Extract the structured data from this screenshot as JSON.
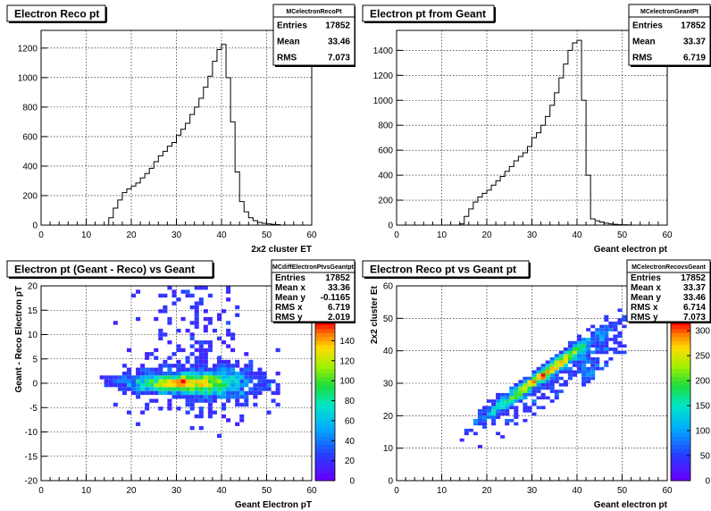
{
  "chart_data": [
    {
      "type": "bar",
      "title": "Electron Reco pt",
      "stats_name": "MCelectronRecoPt",
      "stats": [
        {
          "label": "Entries",
          "value": "17852"
        },
        {
          "label": "Mean",
          "value": "33.46"
        },
        {
          "label": "RMS",
          "value": "7.073"
        }
      ],
      "xlabel": "2x2 cluster ET",
      "ylabel": "",
      "xlim": [
        0,
        60
      ],
      "ylim": [
        0,
        1320
      ],
      "xticks": [
        0,
        10,
        20,
        30,
        40,
        50,
        60
      ],
      "yticks": [
        0,
        200,
        400,
        600,
        800,
        1000,
        1200
      ],
      "grid": true,
      "bin_width": 1,
      "x": [
        15,
        16,
        17,
        18,
        19,
        20,
        21,
        22,
        23,
        24,
        25,
        26,
        27,
        28,
        29,
        30,
        31,
        32,
        33,
        34,
        35,
        36,
        37,
        38,
        39,
        40,
        41,
        42,
        43,
        44,
        45,
        46,
        47,
        48,
        49,
        50,
        51,
        52
      ],
      "values": [
        50,
        115,
        170,
        220,
        245,
        265,
        285,
        320,
        350,
        385,
        430,
        470,
        500,
        535,
        560,
        610,
        650,
        690,
        750,
        800,
        860,
        935,
        1010,
        1110,
        1190,
        1225,
        1000,
        700,
        360,
        160,
        90,
        50,
        30,
        18,
        12,
        8,
        5,
        3
      ]
    },
    {
      "type": "bar",
      "title": "Electron pt from Geant",
      "stats_name": "MCelectronGeantPt",
      "stats": [
        {
          "label": "Entries",
          "value": "17852"
        },
        {
          "label": "Mean",
          "value": "33.37"
        },
        {
          "label": "RMS",
          "value": "6.719"
        }
      ],
      "xlabel": "Geant electron pt",
      "ylabel": "",
      "xlim": [
        0,
        60
      ],
      "ylim": [
        0,
        1560
      ],
      "xticks": [
        0,
        10,
        20,
        30,
        40,
        50,
        60
      ],
      "yticks": [
        0,
        200,
        400,
        600,
        800,
        1000,
        1200,
        1400
      ],
      "grid": true,
      "bin_width": 1,
      "x": [
        14,
        15,
        16,
        17,
        18,
        19,
        20,
        21,
        22,
        23,
        24,
        25,
        26,
        27,
        28,
        29,
        30,
        31,
        32,
        33,
        34,
        35,
        36,
        37,
        38,
        39,
        40,
        41,
        42,
        43,
        44,
        45,
        46,
        47,
        48,
        49,
        50,
        51
      ],
      "values": [
        10,
        70,
        130,
        185,
        225,
        255,
        280,
        320,
        355,
        390,
        430,
        470,
        515,
        550,
        580,
        630,
        700,
        740,
        800,
        870,
        960,
        1060,
        1180,
        1290,
        1400,
        1460,
        1480,
        1000,
        400,
        50,
        35,
        25,
        15,
        10,
        6,
        4,
        3,
        2
      ]
    },
    {
      "type": "heatmap",
      "title": "Electron pt (Geant - Reco) vs Geant",
      "stats_name": "MCdiffElectronPtvsGeantpt",
      "stats": [
        {
          "label": "Entries",
          "value": "17852"
        },
        {
          "label": "Mean x",
          "value": "33.36"
        },
        {
          "label": "Mean y",
          "value": "-0.1165"
        },
        {
          "label": "RMS x",
          "value": "6.719"
        },
        {
          "label": "RMS y",
          "value": "2.019"
        }
      ],
      "xlabel": "Geant Electron pT",
      "ylabel": "Geant - Reco Electron pT",
      "xlim": [
        0,
        60
      ],
      "ylim": [
        -20,
        20
      ],
      "xticks": [
        0,
        10,
        20,
        30,
        40,
        50,
        60
      ],
      "yticks": [
        -20,
        -15,
        -10,
        -5,
        0,
        5,
        10,
        15,
        20
      ],
      "zlim": [
        0,
        160
      ],
      "zticks": [
        0,
        20,
        40,
        60,
        80,
        100,
        120,
        140
      ],
      "grid": true
    },
    {
      "type": "heatmap",
      "title": "Electron Reco pt vs Geant pt",
      "stats_name": "MCelectronRecovsGeant",
      "stats": [
        {
          "label": "Entries",
          "value": "17852"
        },
        {
          "label": "Mean x",
          "value": "33.37"
        },
        {
          "label": "Mean y",
          "value": "33.46"
        },
        {
          "label": "RMS x",
          "value": "6.714"
        },
        {
          "label": "RMS y",
          "value": "7.073"
        }
      ],
      "xlabel": "Geant electron pt",
      "ylabel": "2x2 cluster Et",
      "xlim": [
        0,
        60
      ],
      "ylim": [
        0,
        60
      ],
      "xticks": [
        0,
        10,
        20,
        30,
        40,
        50,
        60
      ],
      "yticks": [
        0,
        10,
        20,
        30,
        40,
        50,
        60
      ],
      "zlim": [
        0,
        320
      ],
      "zticks": [
        0,
        50,
        100,
        150,
        200,
        250,
        300
      ],
      "grid": true
    }
  ]
}
